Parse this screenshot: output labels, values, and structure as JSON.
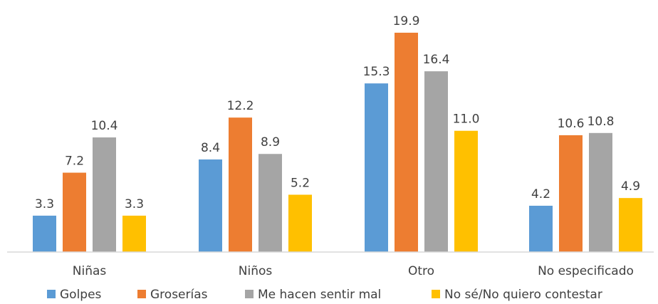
{
  "chart_data": {
    "type": "bar",
    "categories": [
      "Niñas",
      "Niños",
      "Otro",
      "No especificado"
    ],
    "series": [
      {
        "name": "Golpes",
        "color": "#5B9BD5",
        "values": [
          3.3,
          8.4,
          15.3,
          4.2
        ],
        "labels": [
          "3.3",
          "8.4",
          "15.3",
          "4.2"
        ]
      },
      {
        "name": "Groserías",
        "color": "#ED7D31",
        "values": [
          7.2,
          12.2,
          19.9,
          10.6
        ],
        "labels": [
          "7.2",
          "12.2",
          "19.9",
          "10.6"
        ]
      },
      {
        "name": "Me hacen sentir mal",
        "color": "#A5A5A5",
        "values": [
          10.4,
          8.9,
          16.4,
          10.8
        ],
        "labels": [
          "10.4",
          "8.9",
          "16.4",
          "10.8"
        ]
      },
      {
        "name": "No sé/No quiero contestar",
        "color": "#FFC000",
        "values": [
          3.3,
          5.2,
          11.0,
          4.9
        ],
        "labels": [
          "3.3",
          "5.2",
          "11.0",
          "4.9"
        ]
      }
    ],
    "ylim": [
      0,
      20
    ],
    "grid": false,
    "legend": "bottom",
    "axis_color": "#D9D9D9"
  }
}
